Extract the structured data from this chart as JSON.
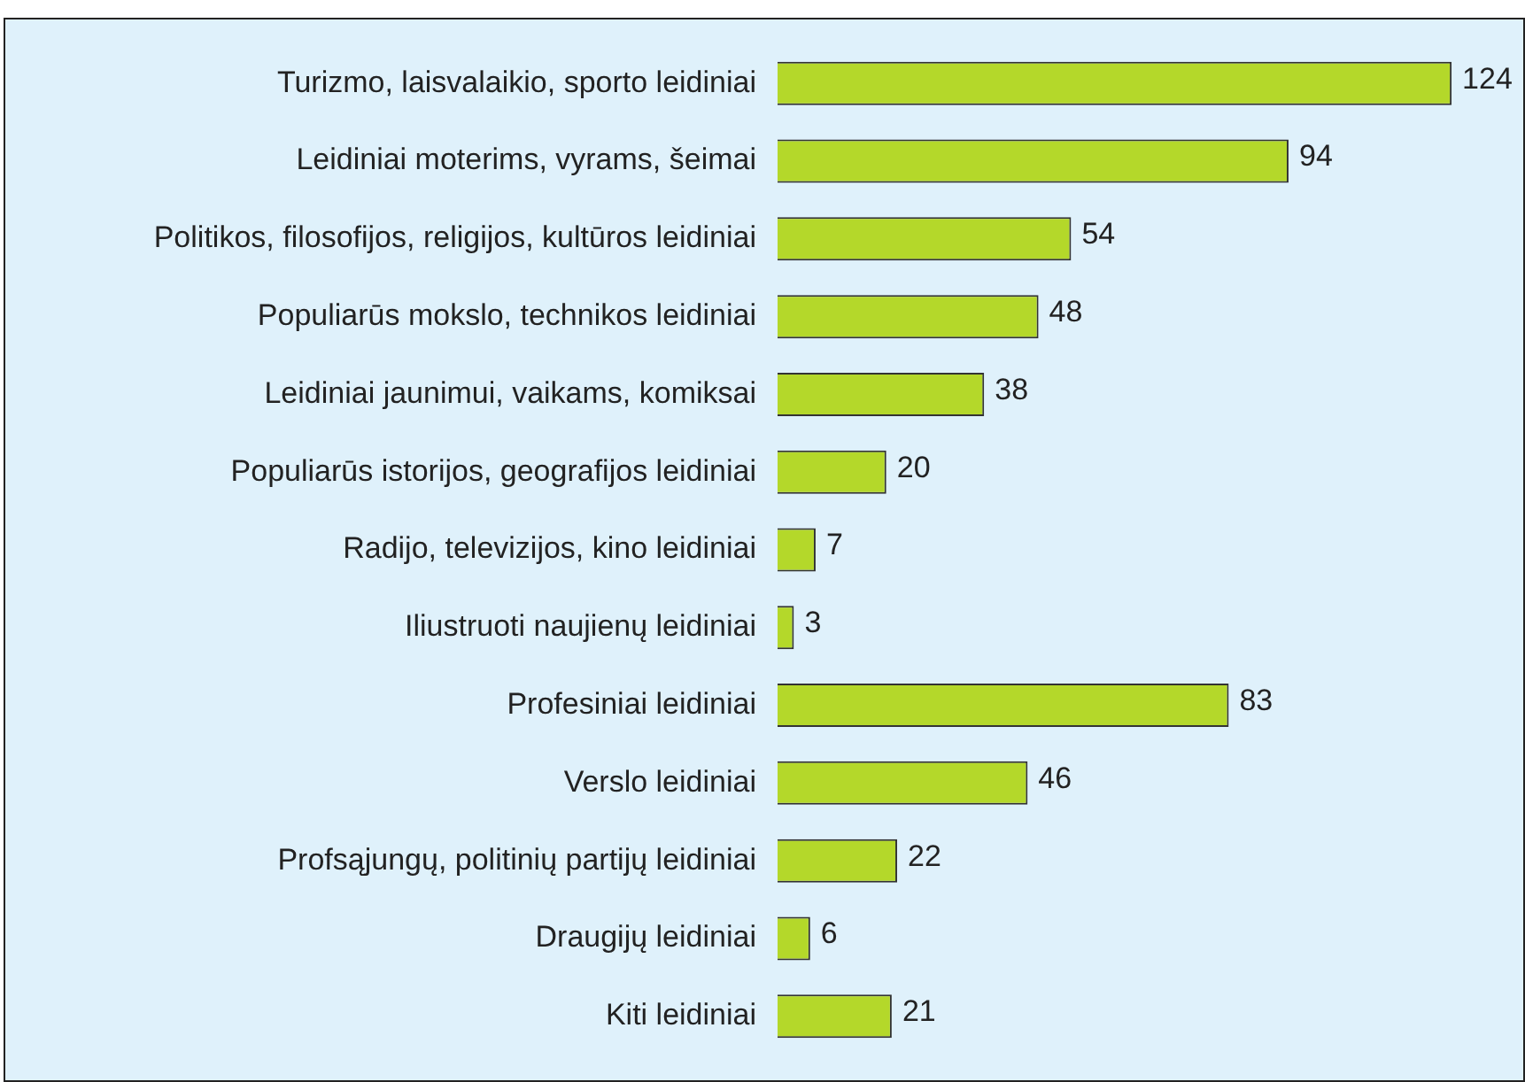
{
  "chart_data": {
    "type": "bar",
    "orientation": "horizontal",
    "data_labels": true,
    "categories": [
      "Turizmo, laisvalaikio, sporto leidiniai",
      "Leidiniai moterims, vyrams, šeimai",
      "Politikos, filosofijos, religijos, kultūros leidiniai",
      "Populiarūs mokslo, technikos leidiniai",
      "Leidiniai jaunimui, vaikams, komiksai",
      "Populiarūs istorijos, geografijos leidiniai",
      "Radijo, televizijos, kino leidiniai",
      "Iliustruoti naujienų leidiniai",
      "Profesiniai leidiniai",
      "Verslo leidiniai",
      "Profsąjungų, politinių partijų leidiniai",
      "Draugijų leidiniai",
      "Kiti leidiniai"
    ],
    "values": [
      124,
      94,
      54,
      48,
      38,
      20,
      7,
      3,
      83,
      46,
      22,
      6,
      21
    ],
    "color": "#b4d82a"
  }
}
